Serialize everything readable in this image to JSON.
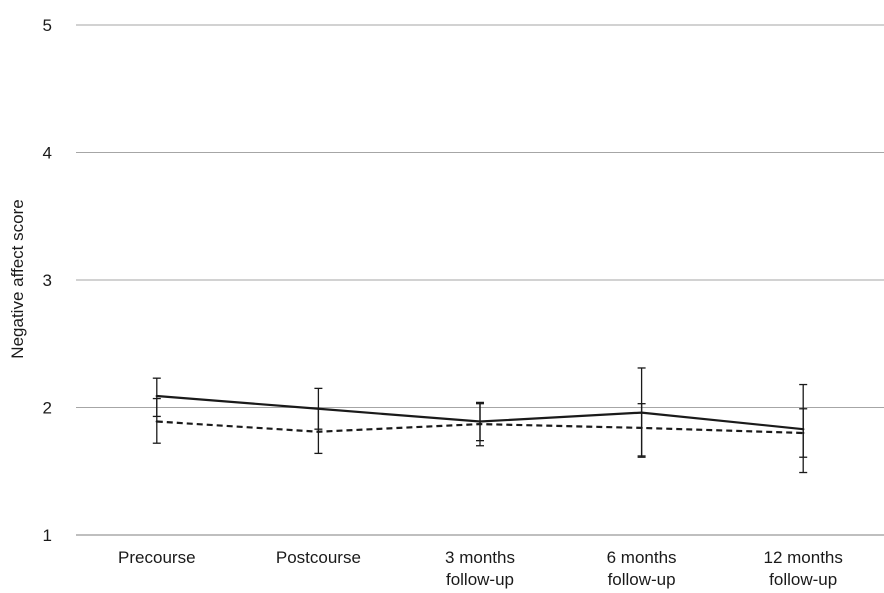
{
  "chart_data": {
    "type": "line",
    "title": "",
    "xlabel": "",
    "ylabel": "Negative affect score",
    "ylim": [
      1,
      5
    ],
    "yticks": [
      "1",
      "2",
      "3",
      "4",
      "5"
    ],
    "grid": true,
    "legend": "none",
    "categories": [
      [
        "Precourse"
      ],
      [
        "Postcourse"
      ],
      [
        "3 months",
        "follow-up"
      ],
      [
        "6 months",
        "follow-up"
      ],
      [
        "12 months",
        "follow-up"
      ]
    ],
    "series": [
      {
        "style": "solid",
        "color": "#1a1a1a",
        "values": [
          2.09,
          1.99,
          1.89,
          1.96,
          1.83
        ],
        "error_low": [
          1.93,
          1.83,
          1.74,
          1.62,
          1.49
        ],
        "error_high": [
          2.23,
          2.15,
          2.04,
          2.31,
          2.18
        ]
      },
      {
        "style": "dashed",
        "color": "#1a1a1a",
        "values": [
          1.89,
          1.81,
          1.87,
          1.84,
          1.8
        ],
        "error_low": [
          1.72,
          1.64,
          1.7,
          1.61,
          1.61
        ],
        "error_high": [
          2.07,
          1.99,
          2.03,
          2.03,
          1.99
        ]
      }
    ],
    "colors": {
      "grid": "#a6a6a6",
      "line": "#1a1a1a"
    }
  }
}
